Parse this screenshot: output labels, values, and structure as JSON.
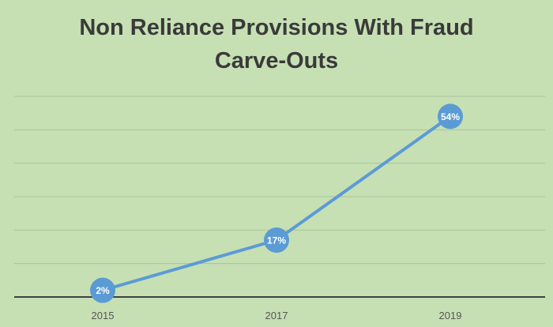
{
  "chart_data": {
    "type": "line",
    "title_lines": [
      "Non Reliance Provisions With Fraud",
      "Carve-Outs"
    ],
    "categories": [
      "2015",
      "2017",
      "2019"
    ],
    "values": [
      2,
      17,
      54
    ],
    "point_labels": [
      "2%",
      "17%",
      "54%"
    ],
    "ylim": [
      0,
      60
    ],
    "grid": true,
    "colors": {
      "background": "#c6e0b4",
      "line": "#5b9bd5",
      "marker": "#5b9bd5",
      "grid": "#a9c49a",
      "axis": "#404040",
      "title": "#3a3a3a",
      "tick_label": "#555555"
    }
  }
}
